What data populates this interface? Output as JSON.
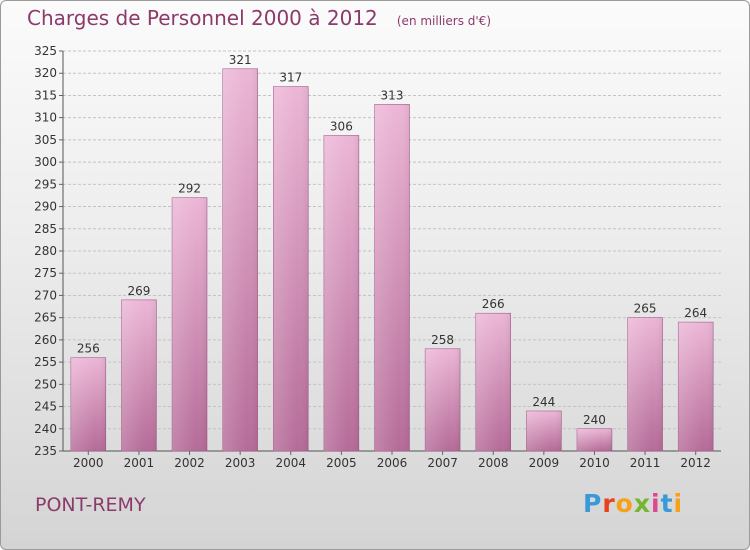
{
  "header": {
    "title": "Charges de Personnel 2000 à 2012",
    "subtitle": "(en milliers d'€)"
  },
  "footer": {
    "place": "PONT-REMY",
    "brand_letters": [
      "P",
      "r",
      "o",
      "x",
      "i",
      "t",
      "i"
    ],
    "brand_colors": [
      "#3a9ad9",
      "#e8421c",
      "#f5a219",
      "#74b72e",
      "#d94891",
      "#3a9ad9",
      "#f5a219"
    ]
  },
  "chart_data": {
    "type": "bar",
    "title": "Charges de Personnel 2000 à 2012",
    "subtitle": "(en milliers d'€)",
    "categories": [
      "2000",
      "2001",
      "2002",
      "2003",
      "2004",
      "2005",
      "2006",
      "2007",
      "2008",
      "2009",
      "2010",
      "2011",
      "2012"
    ],
    "values": [
      256,
      269,
      292,
      321,
      317,
      306,
      313,
      258,
      266,
      244,
      240,
      265,
      264
    ],
    "ylim": [
      235,
      325
    ],
    "yticks": [
      235,
      240,
      245,
      250,
      255,
      260,
      265,
      270,
      275,
      280,
      285,
      290,
      295,
      300,
      305,
      310,
      315,
      320,
      325
    ],
    "grid": true,
    "bar_color": "#c97aa8",
    "bar_gradient": [
      "#ecb6d6",
      "#b56b98"
    ]
  }
}
